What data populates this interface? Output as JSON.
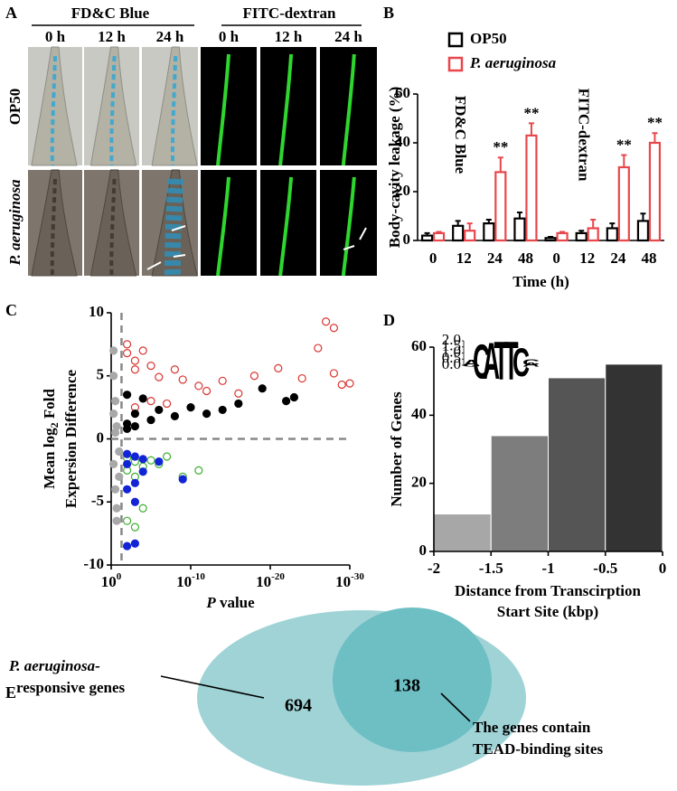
{
  "panel_labels": [
    "A",
    "B",
    "C",
    "D",
    "E"
  ],
  "panel_a": {
    "titles": [
      "FD&C Blue",
      "FITC-dextran"
    ],
    "title_colors": [
      "#1f2fe0",
      "#3ab52a"
    ],
    "times": [
      "0 h",
      "12 h",
      "24 h"
    ],
    "rows": [
      "OP50",
      "P. aeruginosa"
    ]
  },
  "chart_data": [
    {
      "type": "bar",
      "ylabel": "Body-cavity leakage (%)",
      "xlabel": "Time (h)",
      "categories": [
        "0",
        "12",
        "24",
        "48",
        "0",
        "12",
        "24",
        "48"
      ],
      "groups": [
        "FD&C Blue",
        "FITC-dextran"
      ],
      "group_colors": [
        "#1f2fe0",
        "#3ab52a"
      ],
      "ylim": [
        0,
        60
      ],
      "yticks": [
        0,
        20,
        40,
        60
      ],
      "series": [
        {
          "name": "OP50",
          "color": "#000000",
          "italic": false,
          "values": [
            2,
            6,
            7,
            9,
            1,
            3,
            5,
            8
          ],
          "errors": [
            1,
            2,
            1.5,
            2.5,
            0.5,
            1,
            2,
            3
          ]
        },
        {
          "name": "P. aeruginosa",
          "color": "#e8474c",
          "italic": true,
          "values": [
            3,
            4,
            28,
            43,
            3,
            5,
            30,
            40
          ],
          "errors": [
            0.5,
            3,
            6,
            5,
            0.5,
            3.5,
            5,
            4
          ],
          "significance": [
            null,
            null,
            "**",
            "**",
            null,
            null,
            "**",
            "**"
          ]
        }
      ]
    },
    {
      "type": "scatter",
      "xlabel": {
        "italic": "P",
        "text": " value"
      },
      "ylabel": {
        "text": "Mean log",
        "sub": "2",
        "tail": " Fold",
        "line2": "Expersion Difference"
      },
      "xscale": "log",
      "xlim": [
        1,
        1e-30
      ],
      "ylim": [
        -10,
        10
      ],
      "xticks": [
        {
          "value": 1,
          "label": "10",
          "sup": "0"
        },
        {
          "value": 1e-10,
          "label": "10",
          "sup": "-10"
        },
        {
          "value": 1e-20,
          "label": "10",
          "sup": "-20"
        },
        {
          "value": 1e-30,
          "label": "10",
          "sup": "-30"
        }
      ],
      "yticks": [
        -10,
        -5,
        0,
        5,
        10
      ],
      "thresholds": {
        "x": 0.05,
        "y": 0
      },
      "series": [
        {
          "color": "#a8a8a8",
          "filled": true,
          "x": [
            0.5,
            0.3,
            0.2,
            0.1,
            0.5,
            0.3,
            0.2,
            0.1,
            0.5,
            0.3,
            0.2,
            0.5
          ],
          "values": [
            5.0,
            3.0,
            1.0,
            -1.0,
            -2.0,
            -4.0,
            -5.5,
            -3.0,
            7.0,
            0.5,
            -6.5,
            2.0
          ]
        },
        {
          "color": "#d9342f",
          "filled": false,
          "x": [
            0.01,
            0.01,
            0.001,
            0.001,
            0.0001,
            1e-05,
            1e-06,
            1e-08,
            1e-09,
            1e-11,
            1e-12,
            1e-14,
            1e-16,
            1e-18,
            1e-21,
            1e-24,
            1e-26,
            1e-27,
            1e-28,
            1e-29,
            1e-30,
            1e-28,
            0.001,
            1e-05,
            1e-07
          ],
          "values": [
            7.5,
            6.8,
            6.2,
            5.5,
            7.0,
            5.8,
            4.9,
            5.5,
            4.7,
            4.2,
            3.8,
            4.6,
            3.6,
            5.0,
            5.6,
            4.8,
            7.2,
            9.3,
            8.8,
            4.3,
            4.4,
            5.2,
            2.5,
            3.0,
            2.8
          ]
        },
        {
          "color": "#000000",
          "filled": true,
          "x": [
            0.01,
            0.01,
            0.01,
            0.001,
            0.001,
            0.0001,
            1e-05,
            1e-06,
            1e-08,
            1e-10,
            1e-12,
            1e-14,
            1e-16,
            1e-19,
            1e-22,
            1e-23
          ],
          "values": [
            3.5,
            1.2,
            0.8,
            2.0,
            1.0,
            3.2,
            1.5,
            2.3,
            1.8,
            2.5,
            2.0,
            2.3,
            2.8,
            4.0,
            3.0,
            3.3
          ]
        },
        {
          "color": "#3aae2c",
          "filled": false,
          "x": [
            0.01,
            0.01,
            0.001,
            0.001,
            0.0001,
            1e-05,
            1e-06,
            1e-07,
            1e-09,
            1e-11,
            0.01,
            0.001,
            0.0001
          ],
          "values": [
            -1.5,
            -2.5,
            -3.0,
            -1.8,
            -2.2,
            -1.7,
            -2.0,
            -1.4,
            -3.0,
            -2.5,
            -6.5,
            -7.0,
            -5.5
          ]
        },
        {
          "color": "#1224d6",
          "filled": true,
          "x": [
            0.01,
            0.01,
            0.01,
            0.001,
            0.001,
            0.001,
            0.0001,
            0.0001,
            1e-06,
            0.01,
            0.001,
            1e-09
          ],
          "values": [
            -1.2,
            -2.0,
            -4.0,
            -1.4,
            -3.5,
            -5.0,
            -2.6,
            -1.6,
            -1.8,
            -8.5,
            -8.3,
            -3.2
          ]
        }
      ]
    },
    {
      "type": "histogram",
      "ylabel": "Number of Genes",
      "xlabel": [
        "Distance from Transcirption",
        "Start Site (kbp)"
      ],
      "bins": [
        -2,
        -1.5,
        -1,
        -0.5,
        0
      ],
      "values": [
        11,
        34,
        51,
        55
      ],
      "colors": [
        "#a7a7a7",
        "#7d7d7d",
        "#555555",
        "#333333"
      ],
      "xlim": [
        -2,
        0
      ],
      "xticks": [
        -2,
        -1.5,
        -1,
        -0.5,
        0
      ],
      "ylim": [
        0,
        60
      ],
      "yticks": [
        0,
        20,
        40,
        60
      ],
      "inset": {
        "ylim": [
          0,
          2
        ],
        "yticks": [
          {
            "value": 0,
            "label": "0.0"
          },
          {
            "value": 0.5,
            "label": "0.5"
          },
          {
            "value": 1,
            "label": "1.0"
          },
          {
            "value": 1.5,
            "label": "1.5"
          },
          {
            "value": 2,
            "label": "2.0"
          }
        ],
        "positions": [
          [
            {
              "letter": "G",
              "height": 0.15,
              "color": "#f2a20c"
            },
            {
              "letter": "A",
              "height": 0.3,
              "color": "#2ca02c"
            }
          ],
          [
            {
              "letter": "C",
              "height": 1.7,
              "color": "#1a3ad6"
            }
          ],
          [
            {
              "letter": "A",
              "height": 1.8,
              "color": "#2ca02c"
            }
          ],
          [
            {
              "letter": "T",
              "height": 1.9,
              "color": "#e0201c"
            }
          ],
          [
            {
              "letter": "T",
              "height": 1.9,
              "color": "#e0201c"
            }
          ],
          [
            {
              "letter": "C",
              "height": 1.4,
              "color": "#1a3ad6"
            }
          ],
          [
            {
              "letter": "A",
              "height": 0.2,
              "color": "#2ca02c"
            },
            {
              "letter": "C",
              "height": 0.3,
              "color": "#1a3ad6"
            }
          ]
        ]
      }
    }
  ],
  "panel_e": {
    "left_label": [
      "P. aeruginosa-",
      "responsive genes"
    ],
    "outer_count": 694,
    "inner_count": 138,
    "right_label": [
      "The genes contain",
      "TEAD-binding sites"
    ]
  }
}
